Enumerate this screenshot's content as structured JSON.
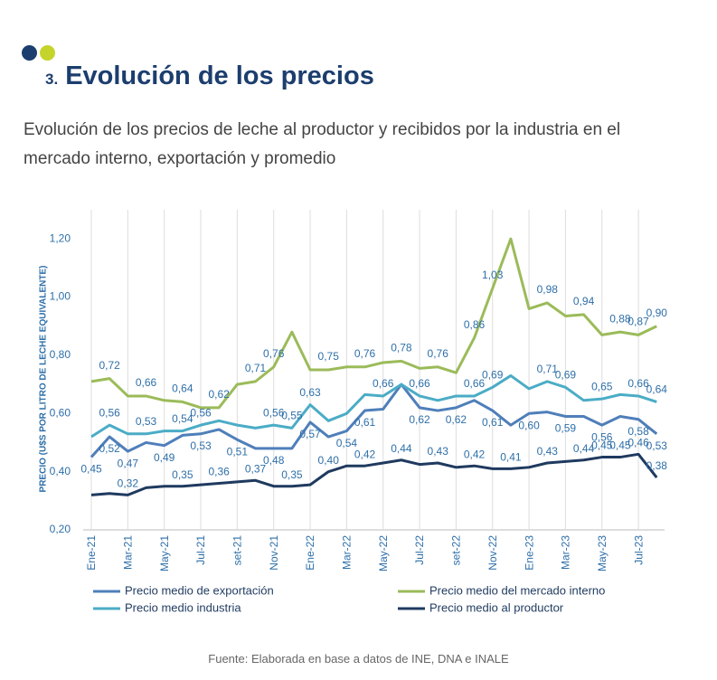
{
  "header": {
    "number": "3.",
    "title": "Evolución de los precios"
  },
  "subtitle": "Evolución de los precios de leche al productor y recibidos por la industria en el mercado interno, exportación y promedio",
  "source": "Fuente: Elaborada en base a datos de INE, DNA e INALE",
  "chart_data": {
    "type": "line",
    "y_label": "PRECIO (U$S POR LITRO DE LECHE EQUIVALENTE)",
    "categories": [
      "Ene-21",
      null,
      "Mar-21",
      null,
      "May-21",
      null,
      "Jul-21",
      null,
      "set-21",
      null,
      "Nov-21",
      null,
      "Ene-22",
      null,
      "Mar-22",
      null,
      "May-22",
      null,
      "Jul-22",
      null,
      "set-22",
      null,
      "Nov-22",
      null,
      "Ene-23",
      null,
      "Mar-23",
      null,
      "May-23",
      null,
      "Jul-23",
      null
    ],
    "ylim": [
      0.2,
      1.3
    ],
    "yticks": [
      {
        "value": 0.2,
        "label": "0,20"
      },
      {
        "value": 0.4,
        "label": "0,40"
      },
      {
        "value": 0.6,
        "label": "0,60"
      },
      {
        "value": 0.8,
        "label": "0,80"
      },
      {
        "value": 1.0,
        "label": "1,00"
      },
      {
        "value": 1.2,
        "label": "1,20"
      }
    ],
    "grid": true,
    "legend": "bottom",
    "series": [
      {
        "name": "Precio medio de exportación",
        "color": "#4f7fba",
        "values": [
          0.45,
          0.52,
          0.47,
          0.5,
          0.49,
          0.525,
          0.53,
          0.545,
          0.51,
          0.48,
          0.48,
          0.48,
          0.57,
          0.52,
          0.54,
          0.61,
          0.615,
          0.7,
          0.62,
          0.61,
          0.62,
          0.645,
          0.61,
          0.56,
          0.6,
          0.605,
          0.59,
          0.59,
          0.56,
          0.59,
          0.58,
          0.53
        ],
        "value_labels": [
          "0,45",
          "0,52",
          "0,47",
          null,
          "0,49",
          null,
          "0,53",
          null,
          "0,51",
          null,
          "0,48",
          null,
          "0,57",
          null,
          "0,54",
          "0,61",
          null,
          null,
          "0,62",
          null,
          "0,62",
          null,
          "0,61",
          null,
          "0,60",
          null,
          "0,59",
          null,
          "0,56",
          null,
          "0,58",
          "0,53"
        ]
      },
      {
        "name": "Precio medio del mercado interno",
        "color": "#9bbb59",
        "values": [
          0.71,
          0.72,
          0.66,
          0.66,
          0.645,
          0.64,
          0.62,
          0.62,
          0.7,
          0.71,
          0.76,
          0.88,
          0.75,
          0.75,
          0.76,
          0.76,
          0.775,
          0.78,
          0.755,
          0.76,
          0.74,
          0.86,
          1.03,
          1.2,
          0.96,
          0.98,
          0.935,
          0.94,
          0.87,
          0.88,
          0.87,
          0.9
        ],
        "value_labels": [
          null,
          "0,72",
          null,
          "0,66",
          null,
          "0,64",
          null,
          "0,62",
          null,
          "0,71",
          "0,76",
          null,
          null,
          "0,75",
          null,
          "0,76",
          null,
          "0,78",
          null,
          "0,76",
          null,
          "0,86",
          "1,03",
          null,
          null,
          "0,98",
          null,
          "0,94",
          null,
          "0,88",
          "0,87",
          "0,90"
        ]
      },
      {
        "name": "Precio medio industria",
        "color": "#4bacc6",
        "values": [
          0.52,
          0.56,
          0.53,
          0.53,
          0.54,
          0.54,
          0.56,
          0.575,
          0.56,
          0.55,
          0.56,
          0.55,
          0.63,
          0.575,
          0.6,
          0.665,
          0.66,
          0.7,
          0.66,
          0.645,
          0.66,
          0.66,
          0.69,
          0.73,
          0.685,
          0.71,
          0.69,
          0.645,
          0.65,
          0.665,
          0.66,
          0.64
        ],
        "value_labels": [
          null,
          "0,56",
          null,
          "0,53",
          null,
          "0,54",
          "0,56",
          null,
          null,
          null,
          "0,56",
          "0,55",
          "0,63",
          null,
          null,
          null,
          "0,66",
          null,
          "0,66",
          null,
          null,
          "0,66",
          "0,69",
          null,
          null,
          "0,71",
          "0,69",
          null,
          "0,65",
          null,
          "0,66",
          "0,64"
        ]
      },
      {
        "name": "Precio medio al productor",
        "color": "#1f3a5f",
        "values": [
          0.32,
          0.325,
          0.32,
          0.345,
          0.35,
          0.35,
          0.355,
          0.36,
          0.365,
          0.37,
          0.35,
          0.35,
          0.355,
          0.4,
          0.42,
          0.42,
          0.43,
          0.44,
          0.425,
          0.43,
          0.415,
          0.42,
          0.41,
          0.41,
          0.415,
          0.43,
          0.435,
          0.44,
          0.45,
          0.45,
          0.46,
          0.38
        ],
        "value_labels": [
          null,
          null,
          "0,32",
          null,
          null,
          "0,35",
          null,
          "0,36",
          null,
          "0,37",
          null,
          "0,35",
          null,
          "0,40",
          null,
          "0,42",
          null,
          "0,44",
          null,
          "0,43",
          null,
          "0,42",
          null,
          "0,41",
          null,
          "0,43",
          null,
          "0,44",
          "0,45",
          "0,45",
          "0,46",
          "0,38"
        ]
      }
    ]
  }
}
